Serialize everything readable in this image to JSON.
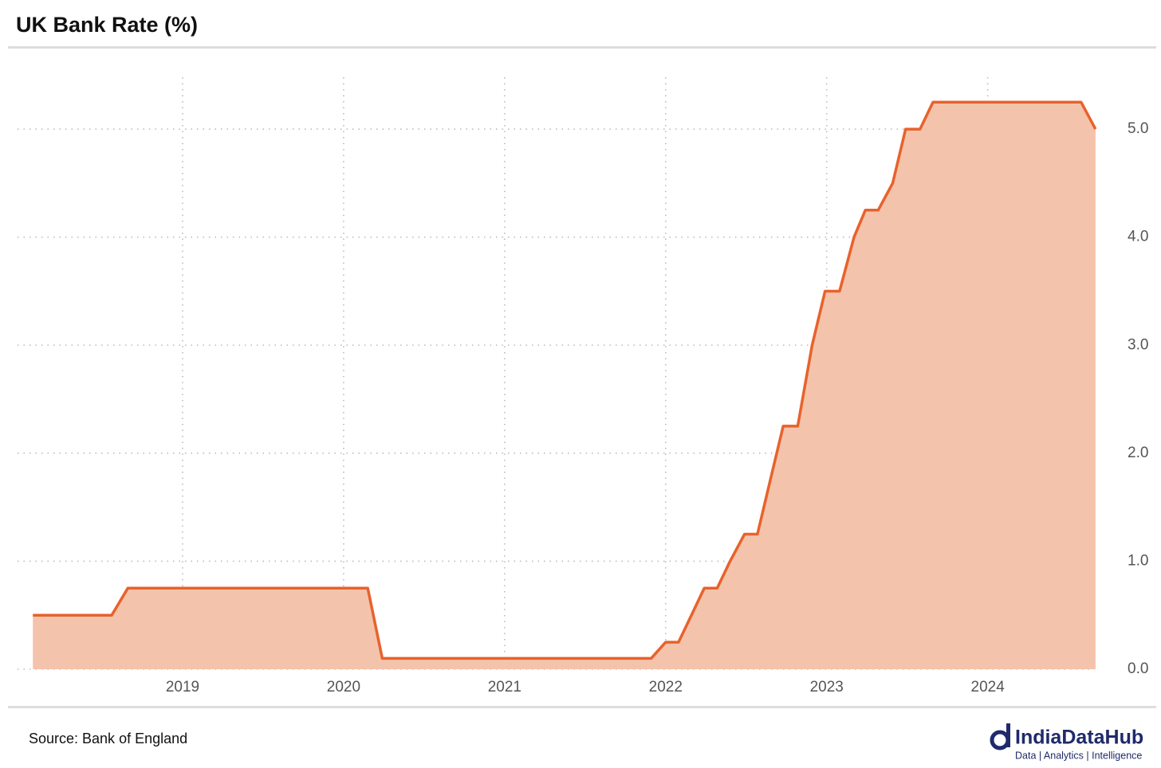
{
  "chart_data": {
    "type": "area",
    "title": "UK Bank Rate (%)",
    "source": "Source: Bank of England",
    "x": [
      2018.07,
      2018.56,
      2018.66,
      2020.15,
      2020.24,
      2021.91,
      2022.0,
      2022.08,
      2022.16,
      2022.24,
      2022.32,
      2022.4,
      2022.49,
      2022.57,
      2022.65,
      2022.73,
      2022.82,
      2022.91,
      2022.99,
      2023.08,
      2023.17,
      2023.24,
      2023.32,
      2023.41,
      2023.49,
      2023.58,
      2023.66,
      2024.58,
      2024.67
    ],
    "series": [
      {
        "name": "UK Bank Rate",
        "color": "#e8622c",
        "fill": "#f4c3ab",
        "values": [
          0.5,
          0.5,
          0.75,
          0.75,
          0.1,
          0.1,
          0.25,
          0.25,
          0.5,
          0.75,
          0.75,
          1.0,
          1.25,
          1.25,
          1.75,
          2.25,
          2.25,
          3.0,
          3.5,
          3.5,
          4.0,
          4.25,
          4.25,
          4.5,
          5.0,
          5.0,
          5.25,
          5.25,
          5.0
        ]
      }
    ],
    "xlim": [
      2017.975,
      2024.7
    ],
    "xticks": [
      2019,
      2020,
      2021,
      2022,
      2023,
      2024
    ],
    "ylim": [
      0,
      5.48
    ],
    "yticks": [
      {
        "value": 0,
        "label": "0.0"
      },
      {
        "value": 1,
        "label": "1.0"
      },
      {
        "value": 2,
        "label": "2.0"
      },
      {
        "value": 3,
        "label": "3.0"
      },
      {
        "value": 4,
        "label": "4.0"
      },
      {
        "value": 5,
        "label": "5.0"
      }
    ],
    "grid": true
  },
  "brand": {
    "name": "IndiaDataHub",
    "tagline": "Data | Analytics | Intelligence"
  }
}
